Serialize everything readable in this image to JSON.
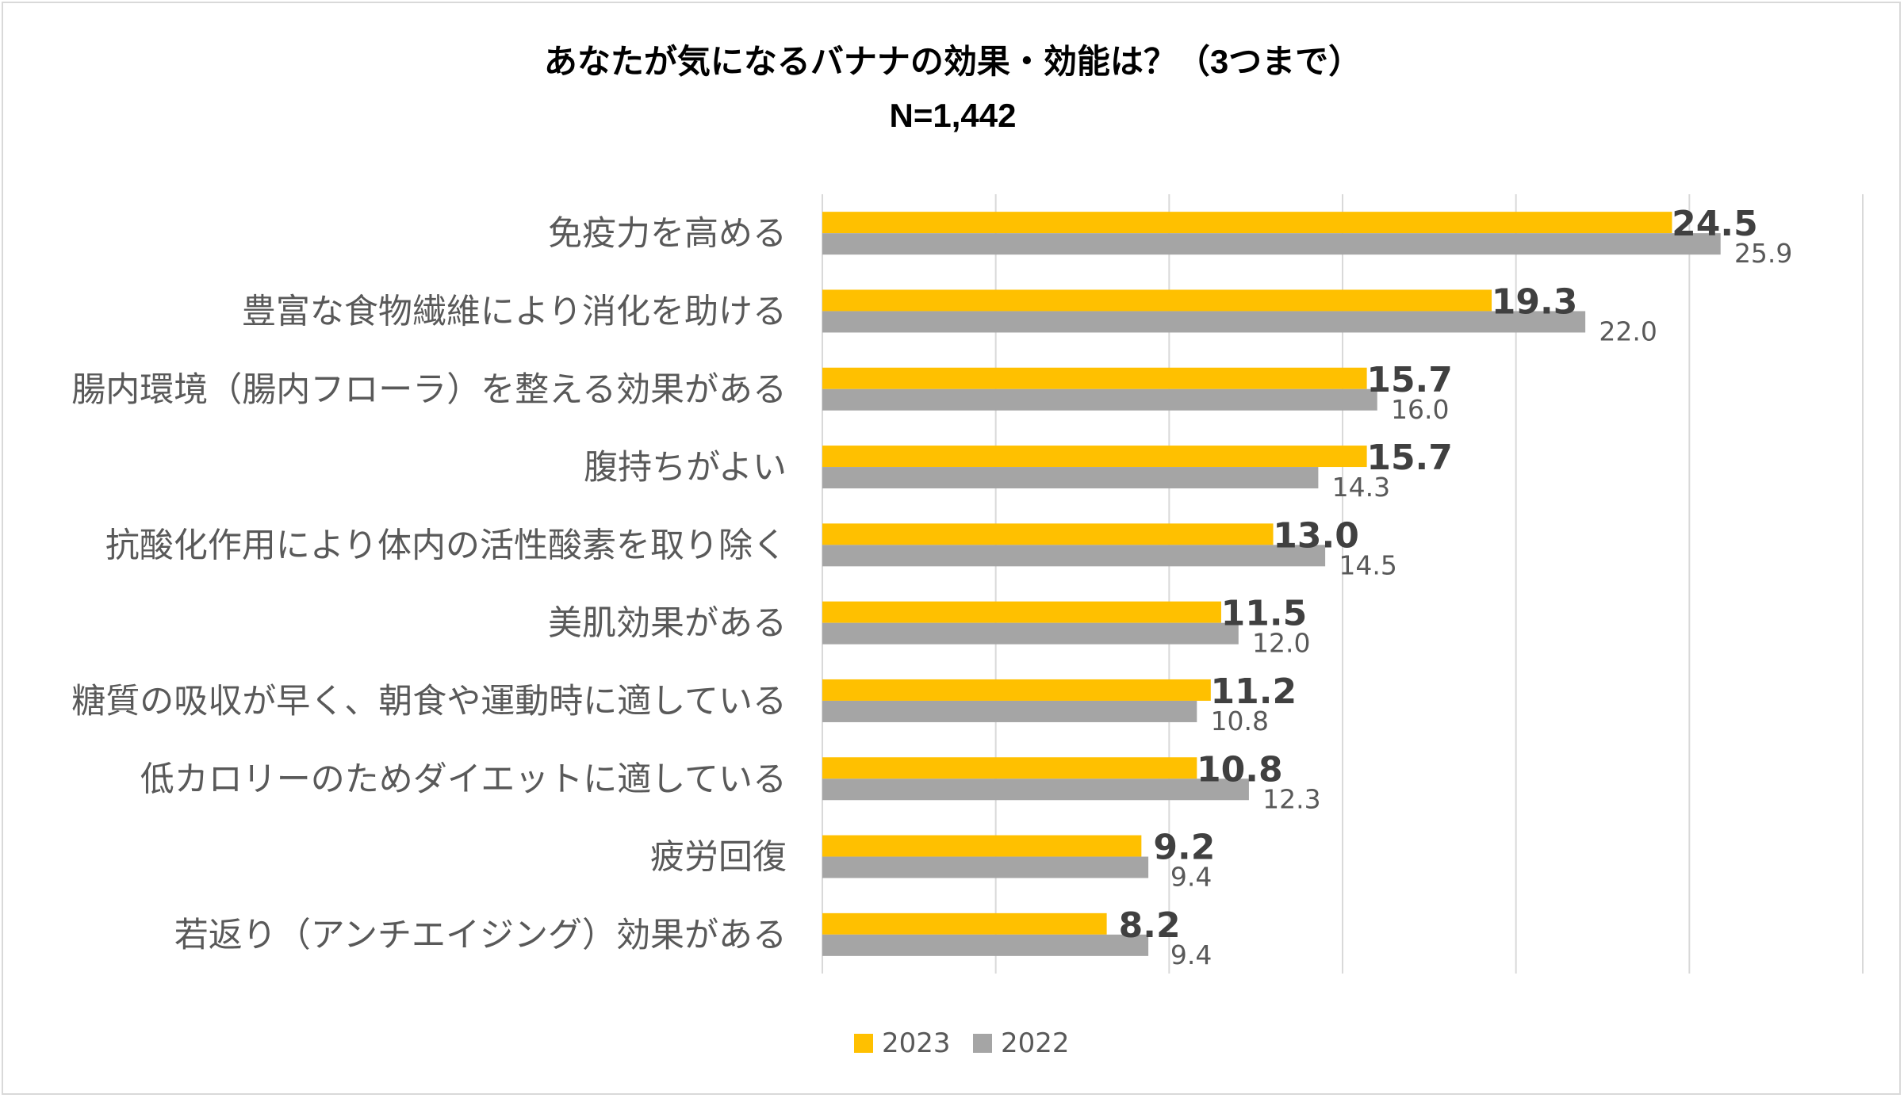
{
  "chart_data": {
    "type": "bar",
    "orientation": "horizontal",
    "title": "あなたが気になるバナナの効果・効能は？（3つまで）",
    "subtitle": "N=1,442",
    "categories": [
      "免疫力を高める",
      "豊富な食物繊維により消化を助ける",
      "腸内環境（腸内フローラ）を整える効果がある",
      "腹持ちがよい",
      "抗酸化作用により体内の活性酸素を取り除く",
      "美肌効果がある",
      "糖質の吸収が早く、朝食や運動時に適している",
      "低カロリーのためダイエットに適している",
      "疲労回復",
      "若返り（アンチエイジング）効果がある"
    ],
    "series": [
      {
        "name": "2023",
        "color": "#FFC000",
        "values": [
          24.5,
          19.3,
          15.7,
          15.7,
          13.0,
          11.5,
          11.2,
          10.8,
          9.2,
          8.2
        ],
        "labels": [
          "24.5",
          "19.3",
          "15.7",
          "15.7",
          "13.0",
          "11.5",
          "11.2",
          "10.8",
          "9.2",
          "8.2"
        ]
      },
      {
        "name": "2022",
        "color": "#A5A5A5",
        "values": [
          25.9,
          22.0,
          16.0,
          14.3,
          14.5,
          12.0,
          10.8,
          12.3,
          9.4,
          9.4
        ],
        "labels": [
          "25.9",
          "22.0",
          "16.0",
          "14.3",
          "14.5",
          "12.0",
          "10.8",
          "12.3",
          "9.4",
          "9.4"
        ]
      }
    ],
    "xlim": [
      0,
      30
    ],
    "grid": true,
    "legend": "bottom-center"
  }
}
